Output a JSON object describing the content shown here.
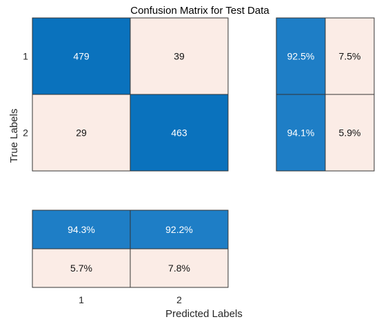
{
  "chart_data": {
    "type": "heatmap",
    "title": "Confusion Matrix for Test Data",
    "xlabel": "Predicted Labels",
    "ylabel": "True Labels",
    "class_labels": [
      "1",
      "2"
    ],
    "matrix": [
      [
        479,
        39
      ],
      [
        29,
        463
      ]
    ],
    "row_summary": [
      [
        "92.5%",
        "7.5%"
      ],
      [
        "94.1%",
        "5.9%"
      ]
    ],
    "column_summary": [
      [
        "94.3%",
        "92.2%"
      ],
      [
        "5.7%",
        "7.8%"
      ]
    ],
    "colors": {
      "high": "#0a72bd",
      "high_summary": "#1e7ec6",
      "low": "#fbece6",
      "border": "#333333",
      "text_on_high": "#ffffff",
      "text_on_low": "#111111",
      "axis_text": "#262626"
    }
  }
}
